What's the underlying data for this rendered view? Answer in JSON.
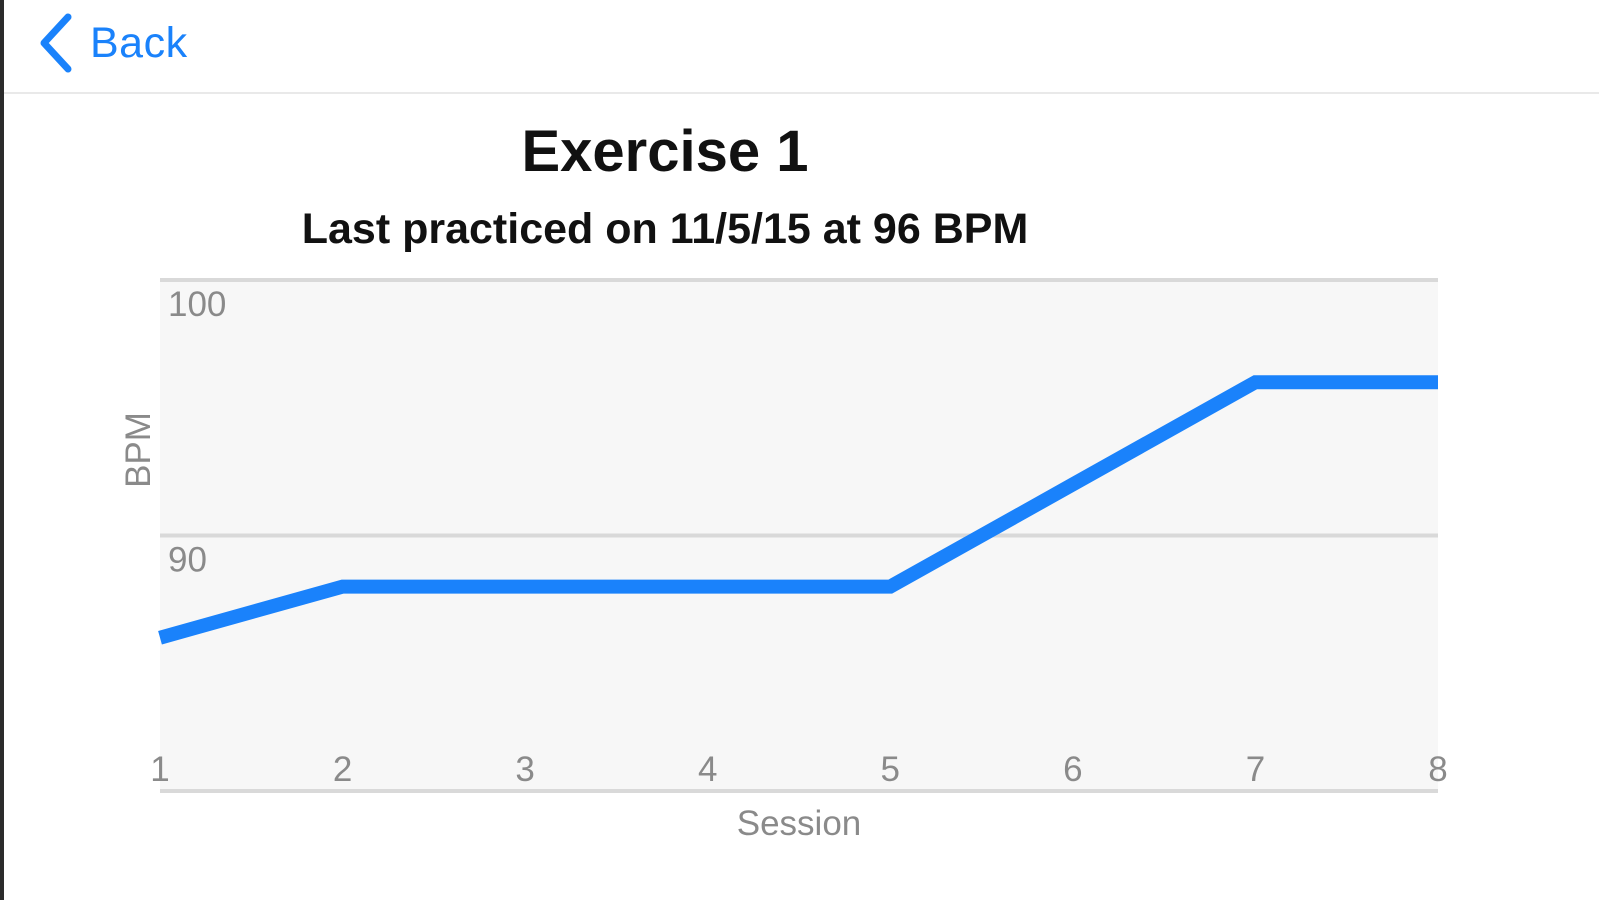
{
  "nav": {
    "back_label": "Back"
  },
  "header": {
    "title": "Exercise 1",
    "subtitle": "Last practiced on 11/5/15 at 96 BPM"
  },
  "colors": {
    "accent": "#1a82fb",
    "plot_background": "#f7f7f7",
    "gridline": "#d9d9d9",
    "axis_text": "#8a8a8a"
  },
  "icons": {
    "back": "chevron-left-icon"
  },
  "chart_data": {
    "type": "line",
    "title": "Exercise 1",
    "subtitle": "Last practiced on 11/5/15 at 96 BPM",
    "xlabel": "Session",
    "ylabel": "BPM",
    "x": [
      1,
      2,
      3,
      4,
      5,
      6,
      7,
      8
    ],
    "x_tick_labels": [
      "1",
      "2",
      "3",
      "4",
      "5",
      "6",
      "7",
      "8"
    ],
    "series": [
      {
        "values": [
          86,
          88,
          88,
          88,
          88,
          92,
          96,
          96
        ],
        "color": "#1a82fb"
      }
    ],
    "y_tick_labels": [
      {
        "value": 100,
        "label": "100"
      },
      {
        "value": 90,
        "label": "90"
      }
    ],
    "ylim": [
      80,
      100
    ],
    "xlim": [
      1,
      8
    ],
    "grid": true
  }
}
